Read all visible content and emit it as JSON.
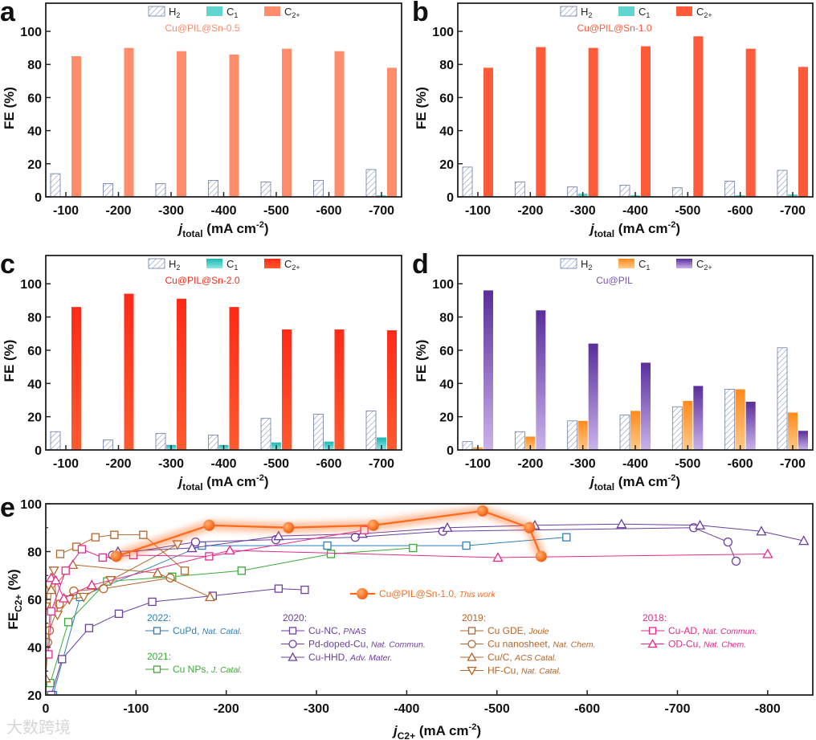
{
  "chart_data": [
    {
      "panel": "a",
      "type": "bar",
      "title": "Cu@PIL@Sn-0.5",
      "title_color": "#FF8C6B",
      "categories": [
        "-100",
        "-200",
        "-300",
        "-400",
        "-500",
        "-600",
        "-700"
      ],
      "xlabel": {
        "main": "j",
        "sub": "total",
        "rest": " (mA cm",
        "sup": "-2",
        "end": ")"
      },
      "ylabel": "FE (%)",
      "ylim": [
        0,
        117
      ],
      "yticks": [
        0,
        20,
        40,
        60,
        80,
        100
      ],
      "series": [
        {
          "label": [
            "H",
            "2"
          ],
          "color": "#8A9AC0",
          "style": "hatch",
          "values": [
            14,
            8,
            8,
            10,
            9,
            10,
            16.5
          ]
        },
        {
          "label": [
            "C",
            "1"
          ],
          "color": "#5FD6D0",
          "style": "solid",
          "values": [
            0,
            0,
            0,
            0,
            0,
            0,
            1
          ]
        },
        {
          "label": [
            "C",
            "2+"
          ],
          "color": "#FF8C6B",
          "style": "solid",
          "values": [
            85,
            90,
            88,
            86,
            89.5,
            88,
            78
          ]
        }
      ]
    },
    {
      "panel": "b",
      "type": "bar",
      "title": "Cu@PIL@Sn-1.0",
      "title_color": "#FF5A3A",
      "categories": [
        "-100",
        "-200",
        "-300",
        "-400",
        "-500",
        "-600",
        "-700"
      ],
      "xlabel": {
        "main": "j",
        "sub": "total",
        "rest": " (mA cm",
        "sup": "-2",
        "end": ")"
      },
      "ylabel": "FE (%)",
      "ylim": [
        0,
        117
      ],
      "yticks": [
        0,
        20,
        40,
        60,
        80,
        100
      ],
      "series": [
        {
          "label": [
            "H",
            "2"
          ],
          "color": "#8A9AC0",
          "style": "hatch",
          "values": [
            18,
            9,
            6,
            7,
            5.5,
            9.5,
            16
          ]
        },
        {
          "label": [
            "C",
            "1"
          ],
          "color": "#5FD6D0",
          "style": "solid",
          "values": [
            0,
            0,
            2,
            1,
            0,
            1,
            1.5
          ]
        },
        {
          "label": [
            "C",
            "2+"
          ],
          "color": "#FF5A3A",
          "style": "solid",
          "values": [
            78,
            90.5,
            90,
            91,
            97,
            89.5,
            78.5
          ]
        }
      ]
    },
    {
      "panel": "c",
      "type": "bar",
      "title": "Cu@PIL@Sn-2.0",
      "title_color": "#FF2A18",
      "categories": [
        "-100",
        "-200",
        "-300",
        "-400",
        "-500",
        "-600",
        "-700"
      ],
      "xlabel": {
        "main": "j",
        "sub": "total",
        "rest": " (mA cm",
        "sup": "-2",
        "end": ")"
      },
      "ylabel": "FE (%)",
      "ylim": [
        0,
        117
      ],
      "yticks": [
        0,
        20,
        40,
        60,
        80,
        100
      ],
      "series": [
        {
          "label": [
            "H",
            "2"
          ],
          "color": "#8A9AC0",
          "style": "hatch",
          "values": [
            11,
            6,
            10,
            9,
            19,
            21.5,
            23.5
          ]
        },
        {
          "label": [
            "C",
            "1"
          ],
          "color": "#2EC4C0",
          "style": "solid",
          "values": [
            0,
            0,
            3,
            3,
            4.5,
            5,
            7.5
          ]
        },
        {
          "label": [
            "C",
            "2+"
          ],
          "color": "#FF2A18",
          "style": "solid",
          "values": [
            86,
            94,
            91,
            86,
            72.5,
            72.5,
            72
          ]
        }
      ]
    },
    {
      "panel": "d",
      "type": "bar",
      "title": "Cu@PIL",
      "title_color": "#7A4FC0",
      "categories": [
        "-100",
        "-200",
        "-300",
        "-400",
        "-500",
        "-600",
        "-700"
      ],
      "xlabel": {
        "main": "j",
        "sub": "total",
        "rest": " (mA cm",
        "sup": "-2",
        "end": ")"
      },
      "ylabel": "FE (%)",
      "ylim": [
        0,
        117
      ],
      "yticks": [
        0,
        20,
        40,
        60,
        80,
        100
      ],
      "series": [
        {
          "label": [
            "H",
            "2"
          ],
          "color": "#6A7FA8",
          "style": "hatch",
          "values": [
            5,
            11,
            17.5,
            21,
            26,
            36.5,
            61.5
          ]
        },
        {
          "label": [
            "C",
            "1"
          ],
          "color": "#FF9A2E",
          "style": "solid",
          "values": [
            1.5,
            8,
            17.5,
            23.5,
            29.5,
            36.5,
            22.5
          ]
        },
        {
          "label": [
            "C",
            "2+"
          ],
          "color": "#6A3FA8",
          "style": "solid",
          "values": [
            96,
            84,
            64,
            52.5,
            38.5,
            29,
            11.5
          ]
        }
      ]
    },
    {
      "panel": "e",
      "type": "line",
      "xlabel": {
        "main": "j",
        "sub": "C2+",
        "rest": " (mA cm",
        "sup": "-2",
        "end": ")"
      },
      "ylabel": {
        "main": "FE",
        "sub": "C2+",
        "rest": " (%)"
      },
      "xlim": [
        0,
        -850
      ],
      "ylim": [
        20,
        100
      ],
      "xticks": [
        0,
        -100,
        -200,
        -300,
        -400,
        -500,
        -600,
        -700,
        -800
      ],
      "yticks": [
        20,
        40,
        60,
        80,
        100
      ],
      "this_work": {
        "name": "Cu@PIL@Sn-1.0, ",
        "journal": "This work",
        "color": "#FF6A1A",
        "points": [
          [
            -78,
            78
          ],
          [
            -181,
            91
          ],
          [
            -269,
            90
          ],
          [
            -363,
            91
          ],
          [
            -484,
            97
          ],
          [
            -536,
            90
          ],
          [
            -549,
            78
          ]
        ]
      },
      "years": [
        {
          "year": "2022:",
          "color": "#2E7FB8",
          "entries": [
            {
              "name": "CuPd, ",
              "journal": "Nat. Catal.",
              "marker": "square",
              "points": [
                [
                  -8,
                  20
                ],
                [
                  -38,
                  61
                ],
                [
                  -173,
                  82.5
                ],
                [
                  -312,
                  82.5
                ],
                [
                  -466,
                  82.5
                ],
                [
                  -577,
                  86
                ]
              ]
            }
          ]
        },
        {
          "year": "2021:",
          "color": "#3AAA35",
          "entries": [
            {
              "name": "Cu NPs, ",
              "journal": "J. Catal.",
              "marker": "square",
              "points": [
                [
                  -5,
                  25
                ],
                [
                  -25,
                  50.5
                ],
                [
                  -68,
                  67.5
                ],
                [
                  -140,
                  69.5
                ],
                [
                  -217,
                  72
                ],
                [
                  -316,
                  79
                ],
                [
                  -407,
                  81.5
                ]
              ]
            }
          ]
        },
        {
          "year": "2020:",
          "color": "#6B3FA0",
          "entries": [
            {
              "name": "Cu-NC, ",
              "journal": "PNAS",
              "marker": "square",
              "points": [
                [
                  -6,
                  20
                ],
                [
                  -18,
                  35
                ],
                [
                  -48,
                  48
                ],
                [
                  -81,
                  54
                ],
                [
                  -118,
                  59
                ],
                [
                  -185,
                  61.5
                ],
                [
                  -258,
                  64.5
                ],
                [
                  -287,
                  64
                ]
              ]
            },
            {
              "name": "Pd-doped-Cu, ",
              "journal": "Nat. Commun.",
              "marker": "circle",
              "points": [
                [
                  -74,
                  78.5
                ],
                [
                  -166,
                  84
                ],
                [
                  -255,
                  85
                ],
                [
                  -343,
                  86
                ],
                [
                  -440,
                  88.5
                ],
                [
                  -718,
                  90
                ],
                [
                  -756,
                  84
                ],
                [
                  -765,
                  76
                ]
              ]
            },
            {
              "name": "Cu-HHD, ",
              "journal": "Adv. Mater.",
              "marker": "triangle",
              "points": [
                [
                  -80,
                  80
                ],
                [
                  -162,
                  81.5
                ],
                [
                  -258,
                  86.5
                ],
                [
                  -351,
                  87.5
                ],
                [
                  -445,
                  90
                ],
                [
                  -542,
                  91
                ],
                [
                  -638,
                  91.5
                ],
                [
                  -725,
                  91
                ],
                [
                  -793,
                  88.5
                ],
                [
                  -840,
                  84.5
                ]
              ]
            }
          ]
        },
        {
          "year": "2019:",
          "color": "#B5652A",
          "entries": [
            {
              "name": "Cu GDE, ",
              "journal": "Joule",
              "marker": "square",
              "points": [
                [
                  -16,
                  79
                ],
                [
                  -34,
                  82
                ],
                [
                  -55,
                  86
                ],
                [
                  -76,
                  87
                ],
                [
                  -108,
                  87
                ],
                [
                  -154,
                  72
                ]
              ]
            },
            {
              "name": "Cu nanosheet, ",
              "journal": "Nat. Chem.",
              "marker": "circle",
              "points": [
                [
                  -2,
                  42
                ],
                [
                  -4,
                  47
                ],
                [
                  -15,
                  58
                ],
                [
                  -31,
                  63.5
                ],
                [
                  -64,
                  64.5
                ],
                [
                  -138,
                  69
                ]
              ]
            },
            {
              "name": "Cu/C, ",
              "journal": "ACS Catal.",
              "marker": "triangle",
              "points": [
                [
                  0,
                  27
                ],
                [
                  -6,
                  64
                ],
                [
                  -30,
                  74.5
                ],
                [
                  -124,
                  71
                ],
                [
                  -182,
                  61
                ]
              ]
            },
            {
              "name": "HF-Cu, ",
              "journal": "Nat. Catal.",
              "marker": "triangle-down",
              "points": [
                [
                  0,
                  57
                ],
                [
                  -3,
                  66
                ],
                [
                  -9,
                  72
                ],
                [
                  -13,
                  53.5
                ],
                [
                  -26,
                  60
                ],
                [
                  -42,
                  61
                ],
                [
                  -72,
                  68
                ],
                [
                  -146,
                  83
                ]
              ]
            }
          ]
        },
        {
          "year": "2018:",
          "color": "#E6288A",
          "entries": [
            {
              "name": "Cu-AD, ",
              "journal": "Nat. Commun.",
              "marker": "square",
              "points": [
                [
                  -3,
                  37
                ],
                [
                  -6,
                  55
                ],
                [
                  -22,
                  72
                ],
                [
                  -40,
                  81
                ],
                [
                  -63,
                  77.5
                ],
                [
                  -97,
                  78.5
                ],
                [
                  -181,
                  78
                ],
                [
                  -353,
                  89
                ]
              ]
            },
            {
              "name": "OD-Cu, ",
              "journal": "Nat. Chem.",
              "marker": "triangle",
              "points": [
                [
                  -6,
                  69
                ],
                [
                  -11,
                  68
                ],
                [
                  -20,
                  60.5
                ],
                [
                  -51,
                  66
                ],
                [
                  -204,
                  80.5
                ],
                [
                  -501,
                  77.5
                ],
                [
                  -800,
                  79
                ]
              ]
            }
          ]
        }
      ]
    }
  ],
  "watermark": "大数跨境"
}
